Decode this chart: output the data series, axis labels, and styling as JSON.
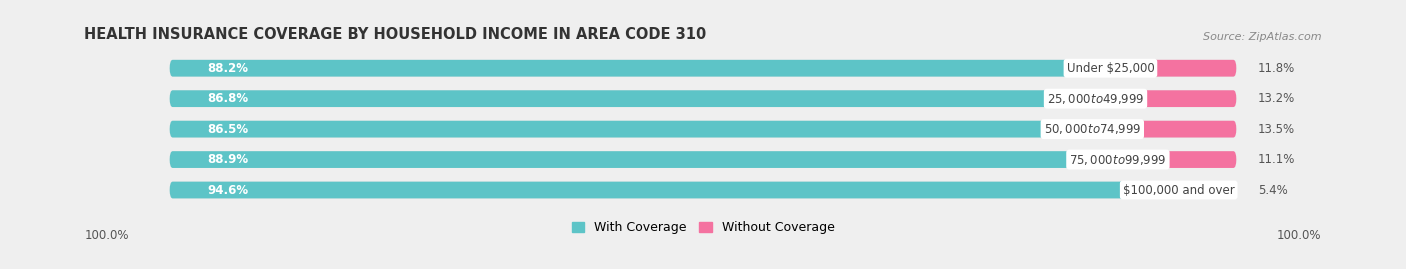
{
  "title": "HEALTH INSURANCE COVERAGE BY HOUSEHOLD INCOME IN AREA CODE 310",
  "source": "Source: ZipAtlas.com",
  "categories": [
    "Under $25,000",
    "$25,000 to $49,999",
    "$50,000 to $74,999",
    "$75,000 to $99,999",
    "$100,000 and over"
  ],
  "with_coverage": [
    88.2,
    86.8,
    86.5,
    88.9,
    94.6
  ],
  "without_coverage": [
    11.8,
    13.2,
    13.5,
    11.1,
    5.4
  ],
  "coverage_color": "#5DC4C7",
  "without_color_bright": "#F472A0",
  "without_color_last": "#F8AEC8",
  "background_color": "#efefef",
  "track_color": "#e2e2e2",
  "label_color_left": "#ffffff",
  "label_color_right": "#555555",
  "category_label_color": "#444444",
  "footer_label": "100.0%",
  "legend_with": "With Coverage",
  "legend_without": "Without Coverage",
  "title_fontsize": 10.5,
  "bar_fontsize": 8.5,
  "cat_fontsize": 8.5,
  "footer_fontsize": 8.5,
  "source_fontsize": 8
}
